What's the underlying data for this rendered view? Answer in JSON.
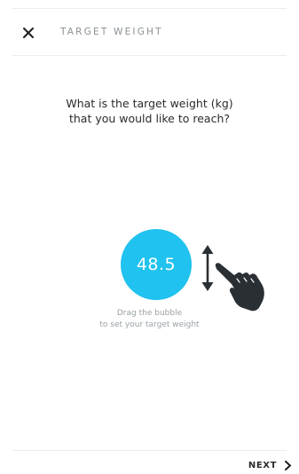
{
  "header": {
    "title": "TARGET WEIGHT",
    "close_icon": "close-icon"
  },
  "question": {
    "line1": "What is the target weight (kg)",
    "line2": "that you would like to reach?"
  },
  "bubble": {
    "value": "48.5",
    "color": "#20c2ef"
  },
  "icons": {
    "drag_arrow": "up-down-arrow-icon",
    "hand": "pointing-hand-icon",
    "next_chevron": "chevron-right-icon"
  },
  "hint": {
    "line1": "Drag the bubble",
    "line2": "to set your target weight"
  },
  "footer": {
    "next_label": "NEXT"
  }
}
